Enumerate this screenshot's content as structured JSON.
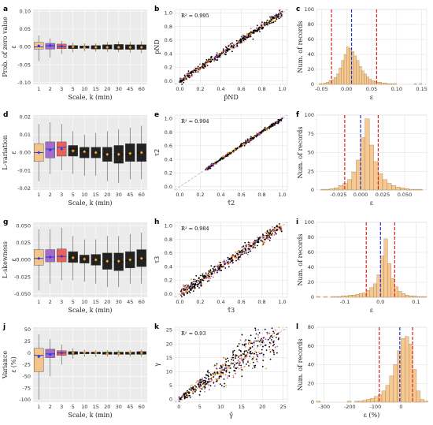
{
  "colors": {
    "box_fill": [
      "#f3c58b",
      "#a56bc8",
      "#e8615a",
      "#222222",
      "#222222",
      "#222222",
      "#222222",
      "#222222",
      "#222222",
      "#222222"
    ],
    "mean_marker": "#f5a623",
    "median_line": "#2b3bd6",
    "hist_fill": "#f6c892",
    "hist_edge": "#8a6a3a",
    "dash_red": "#e0201b",
    "dash_blue": "#2233cc",
    "scatter_main": "#000000",
    "scatter_alt": [
      "#f5a623",
      "#b04cc0",
      "#e8615a"
    ]
  },
  "chart_data": [
    {
      "id": "a",
      "label": "a",
      "type": "box",
      "ylabel": "Prob. of zero value",
      "yaxis_symbol": "ε",
      "xlabel": "Scale, k (min)",
      "categories": [
        "1",
        "2",
        "3",
        "5",
        "10",
        "15",
        "20",
        "30",
        "45",
        "60"
      ],
      "ylim": [
        -0.105,
        0.105
      ],
      "yticks": [
        -0.1,
        -0.05,
        0.0,
        0.05,
        0.1
      ],
      "ytick_labels": [
        "-0.10",
        "-0.05",
        "0.00",
        "0.05",
        "0.10"
      ],
      "boxes": [
        {
          "lw": -0.04,
          "q1": -0.006,
          "med": 0.0,
          "q3": 0.013,
          "uw": 0.032,
          "mean": 0.003
        },
        {
          "lw": -0.03,
          "q1": -0.006,
          "med": 0.003,
          "q3": 0.01,
          "uw": 0.024,
          "mean": 0.004
        },
        {
          "lw": -0.02,
          "q1": -0.005,
          "med": 0.001,
          "q3": 0.008,
          "uw": 0.017,
          "mean": 0.002
        },
        {
          "lw": -0.015,
          "q1": -0.005,
          "med": 0.0,
          "q3": 0.004,
          "uw": 0.012,
          "mean": 0.0
        },
        {
          "lw": -0.012,
          "q1": -0.004,
          "med": -0.001,
          "q3": 0.003,
          "uw": 0.01,
          "mean": -0.001
        },
        {
          "lw": -0.013,
          "q1": -0.006,
          "med": -0.001,
          "q3": 0.004,
          "uw": 0.01,
          "mean": -0.001
        },
        {
          "lw": -0.014,
          "q1": -0.006,
          "med": -0.001,
          "q3": 0.006,
          "uw": 0.014,
          "mean": -0.001
        },
        {
          "lw": -0.015,
          "q1": -0.007,
          "med": -0.001,
          "q3": 0.007,
          "uw": 0.015,
          "mean": -0.001
        },
        {
          "lw": -0.016,
          "q1": -0.007,
          "med": -0.002,
          "q3": 0.006,
          "uw": 0.014,
          "mean": -0.001
        },
        {
          "lw": -0.017,
          "q1": -0.007,
          "med": -0.001,
          "q3": 0.006,
          "uw": 0.015,
          "mean": -0.001
        }
      ]
    },
    {
      "id": "b",
      "label": "b",
      "type": "scatter",
      "annotation": "R² = 0.995",
      "xlabel": "p̂ND",
      "ylabel": "pND",
      "xlim": [
        -0.05,
        1.05
      ],
      "ylim": [
        -0.05,
        1.05
      ],
      "xticks": [
        0.0,
        0.2,
        0.4,
        0.6,
        0.8,
        1.0
      ],
      "yticks": [
        0.0,
        0.2,
        0.4,
        0.6,
        0.8,
        1.0
      ],
      "xtick_labels": [
        "0.0",
        "0.2",
        "0.4",
        "0.6",
        "0.8",
        "1.0"
      ],
      "ytick_labels": [
        "0.0",
        "0.2",
        "0.4",
        "0.6",
        "0.8",
        "1.0"
      ],
      "fit": {
        "slope": 1.0,
        "intercept": 0.0,
        "spread": 0.025,
        "n": 520,
        "x_range": [
          0.0,
          1.0
        ]
      }
    },
    {
      "id": "c",
      "label": "c",
      "type": "histogram",
      "xlabel": "ε",
      "ylabel": "Num. of records",
      "bin_start": -0.06,
      "bin_width": 0.005,
      "counts": [
        0,
        1,
        1,
        2,
        3,
        5,
        6,
        9,
        14,
        22,
        32,
        40,
        50,
        48,
        44,
        38,
        32,
        24,
        18,
        14,
        10,
        7,
        5,
        4,
        3,
        3,
        2,
        2,
        1,
        1,
        1,
        1,
        0,
        0,
        0,
        0,
        0,
        0,
        0,
        1,
        0,
        1,
        0,
        0
      ],
      "xlim": [
        -0.06,
        0.16
      ],
      "ylim": [
        0,
        100
      ],
      "xticks": [
        -0.05,
        0.0,
        0.05,
        0.1,
        0.15
      ],
      "xtick_labels": [
        "-0.05",
        "0.00",
        "0.05",
        "0.10",
        "0.15"
      ],
      "yticks": [
        0,
        20,
        40,
        60,
        80,
        100
      ],
      "ytick_labels": [
        "0",
        "20",
        "40",
        "60",
        "80",
        "100"
      ],
      "red_lines": [
        -0.03,
        0.06
      ],
      "blue_lines": [
        0.01
      ]
    },
    {
      "id": "d",
      "label": "d",
      "type": "box",
      "ylabel": "L-variation",
      "yaxis_symbol": "ε",
      "xlabel": "Scale, k (min)",
      "categories": [
        "1",
        "2",
        "3",
        "5",
        "10",
        "15",
        "20",
        "30",
        "45",
        "60"
      ],
      "ylim": [
        -0.021,
        0.021
      ],
      "yticks": [
        -0.02,
        -0.01,
        0.0,
        0.01,
        0.02
      ],
      "ytick_labels": [
        "-0.02",
        "-0.01",
        "0.00",
        "0.01",
        "0.02"
      ],
      "boxes": [
        {
          "lw": -0.016,
          "q1": -0.005,
          "med": 0.0,
          "q3": 0.005,
          "uw": 0.016,
          "mean": 0.0
        },
        {
          "lw": -0.012,
          "q1": -0.003,
          "med": 0.002,
          "q3": 0.006,
          "uw": 0.017,
          "mean": 0.0015
        },
        {
          "lw": -0.01,
          "q1": -0.002,
          "med": 0.003,
          "q3": 0.006,
          "uw": 0.016,
          "mean": 0.002
        },
        {
          "lw": -0.012,
          "q1": -0.002,
          "med": 0.002,
          "q3": 0.004,
          "uw": 0.012,
          "mean": 0.001
        },
        {
          "lw": -0.013,
          "q1": -0.003,
          "med": 0.001,
          "q3": 0.003,
          "uw": 0.01,
          "mean": 0.0005
        },
        {
          "lw": -0.013,
          "q1": -0.003,
          "med": 0.0,
          "q3": 0.003,
          "uw": 0.011,
          "mean": 0.0
        },
        {
          "lw": -0.016,
          "q1": -0.005,
          "med": -0.001,
          "q3": 0.003,
          "uw": 0.012,
          "mean": -0.001
        },
        {
          "lw": -0.017,
          "q1": -0.006,
          "med": -0.001,
          "q3": 0.004,
          "uw": 0.013,
          "mean": -0.001
        },
        {
          "lw": -0.015,
          "q1": -0.005,
          "med": -0.001,
          "q3": 0.005,
          "uw": 0.014,
          "mean": -0.0005
        },
        {
          "lw": -0.015,
          "q1": -0.005,
          "med": 0.0,
          "q3": 0.005,
          "uw": 0.015,
          "mean": 0.0
        }
      ]
    },
    {
      "id": "e",
      "label": "e",
      "type": "scatter",
      "annotation": "R² = 0.994",
      "xlabel": "τ̂2",
      "ylabel": "τ2",
      "xlim": [
        -0.05,
        1.05
      ],
      "ylim": [
        -0.05,
        1.05
      ],
      "xticks": [
        0.0,
        0.2,
        0.4,
        0.6,
        0.8,
        1.0
      ],
      "yticks": [
        0.0,
        0.2,
        0.4,
        0.6,
        0.8,
        1.0
      ],
      "xtick_labels": [
        "0.0",
        "0.2",
        "0.4",
        "0.6",
        "0.8",
        "1.0"
      ],
      "ytick_labels": [
        "0.0",
        "0.2",
        "0.4",
        "0.6",
        "0.8",
        "1.0"
      ],
      "fit": {
        "slope": 1.0,
        "intercept": 0.0,
        "spread": 0.012,
        "n": 380,
        "x_range": [
          0.25,
          1.0
        ]
      }
    },
    {
      "id": "f",
      "label": "f",
      "type": "histogram",
      "xlabel": "ε",
      "ylabel": "Num. of records",
      "bin_start": -0.05,
      "bin_width": 0.005,
      "counts": [
        0,
        1,
        1,
        2,
        3,
        6,
        9,
        14,
        24,
        40,
        70,
        95,
        60,
        38,
        22,
        14,
        9,
        6,
        4,
        3,
        2,
        1,
        1,
        1,
        0,
        0,
        0
      ],
      "xlim": [
        -0.05,
        0.075
      ],
      "ylim": [
        0,
        100
      ],
      "xticks": [
        -0.025,
        0.0,
        0.025,
        0.05
      ],
      "xtick_labels": [
        "-0.025",
        "0.000",
        "0.025",
        "0.050"
      ],
      "yticks": [
        0,
        25,
        50,
        75,
        100
      ],
      "ytick_labels": [
        "0",
        "25",
        "50",
        "75",
        "100"
      ],
      "red_lines": [
        -0.018,
        0.02
      ],
      "blue_lines": [
        0.0
      ]
    },
    {
      "id": "g",
      "label": "g",
      "type": "box",
      "ylabel": "L-skewness",
      "yaxis_symbol": "ε",
      "xlabel": "Scale, k (min)",
      "categories": [
        "1",
        "2",
        "3",
        "5",
        "10",
        "15",
        "20",
        "30",
        "45",
        "60"
      ],
      "ylim": [
        -0.055,
        0.055
      ],
      "yticks": [
        -0.05,
        -0.025,
        0.0,
        0.025,
        0.05
      ],
      "ytick_labels": [
        "-0.050",
        "-0.025",
        "0.000",
        "0.025",
        "0.050"
      ],
      "boxes": [
        {
          "lw": -0.045,
          "q1": -0.008,
          "med": 0.002,
          "q3": 0.015,
          "uw": 0.045,
          "mean": 0.002
        },
        {
          "lw": -0.035,
          "q1": -0.003,
          "med": 0.004,
          "q3": 0.015,
          "uw": 0.045,
          "mean": 0.004
        },
        {
          "lw": -0.03,
          "q1": -0.003,
          "med": 0.005,
          "q3": 0.016,
          "uw": 0.047,
          "mean": 0.005
        },
        {
          "lw": -0.03,
          "q1": -0.004,
          "med": 0.003,
          "q3": 0.012,
          "uw": 0.035,
          "mean": 0.003
        },
        {
          "lw": -0.032,
          "q1": -0.005,
          "med": 0.001,
          "q3": 0.007,
          "uw": 0.03,
          "mean": 0.001
        },
        {
          "lw": -0.035,
          "q1": -0.008,
          "med": 0.0,
          "q3": 0.008,
          "uw": 0.03,
          "mean": 0.0
        },
        {
          "lw": -0.04,
          "q1": -0.014,
          "med": -0.002,
          "q3": 0.01,
          "uw": 0.035,
          "mean": -0.002
        },
        {
          "lw": -0.04,
          "q1": -0.016,
          "med": -0.003,
          "q3": 0.01,
          "uw": 0.035,
          "mean": -0.002
        },
        {
          "lw": -0.035,
          "q1": -0.012,
          "med": -0.001,
          "q3": 0.012,
          "uw": 0.038,
          "mean": 0.0
        },
        {
          "lw": -0.035,
          "q1": -0.01,
          "med": 0.001,
          "q3": 0.015,
          "uw": 0.04,
          "mean": 0.002
        }
      ]
    },
    {
      "id": "h",
      "label": "h",
      "type": "scatter",
      "annotation": "R² = 0.984",
      "xlabel": "τ̂3",
      "ylabel": "τ3",
      "xlim": [
        -0.05,
        1.05
      ],
      "ylim": [
        -0.05,
        1.05
      ],
      "xticks": [
        0.0,
        0.2,
        0.4,
        0.6,
        0.8,
        1.0
      ],
      "yticks": [
        0.0,
        0.2,
        0.4,
        0.6,
        0.8,
        1.0
      ],
      "xtick_labels": [
        "0.0",
        "0.2",
        "0.4",
        "0.6",
        "0.8",
        "1.0"
      ],
      "ytick_labels": [
        "0.0",
        "0.2",
        "0.4",
        "0.6",
        "0.8",
        "1.0"
      ],
      "fit": {
        "slope": 1.0,
        "intercept": 0.0,
        "spread": 0.04,
        "n": 520,
        "x_range": [
          0.0,
          1.0
        ]
      }
    },
    {
      "id": "i",
      "label": "i",
      "type": "histogram",
      "xlabel": "ε",
      "ylabel": "Num. of records",
      "bin_start": -0.18,
      "bin_width": 0.01,
      "counts": [
        1,
        0,
        1,
        0,
        1,
        1,
        1,
        2,
        2,
        3,
        3,
        4,
        5,
        6,
        9,
        13,
        18,
        30,
        55,
        78,
        45,
        25,
        14,
        8,
        5,
        3,
        2,
        2,
        1,
        1,
        1,
        0
      ],
      "xlim": [
        -0.18,
        0.13
      ],
      "ylim": [
        0,
        100
      ],
      "xticks": [
        -0.1,
        0.0,
        0.1
      ],
      "xtick_labels": [
        "-0.1",
        "0.0",
        "0.1"
      ],
      "yticks": [
        0,
        20,
        40,
        60,
        80,
        100
      ],
      "ytick_labels": [
        "0",
        "20",
        "40",
        "60",
        "80",
        "100"
      ],
      "red_lines": [
        -0.04,
        0.04
      ],
      "blue_lines": [
        0.0
      ]
    },
    {
      "id": "j",
      "label": "j",
      "type": "box",
      "ylabel": "Variance",
      "yaxis_symbol": "ε (%)",
      "xlabel": "Scale, k (min)",
      "categories": [
        "1",
        "2",
        "3",
        "5",
        "10",
        "15",
        "20",
        "30",
        "45",
        "60"
      ],
      "ylim": [
        -105,
        55
      ],
      "yticks": [
        -100,
        -75,
        -50,
        -25,
        0,
        25,
        50
      ],
      "ytick_labels": [
        "-100",
        "-75",
        "-50",
        "-25",
        "0",
        "25",
        "50"
      ],
      "boxes": [
        {
          "lw": -100,
          "q1": -40,
          "med": -5,
          "q3": 10,
          "uw": 40,
          "mean": -8
        },
        {
          "lw": -50,
          "q1": -10,
          "med": -2,
          "q3": 8,
          "uw": 30,
          "mean": -3
        },
        {
          "lw": -25,
          "q1": -5,
          "med": 0,
          "q3": 5,
          "uw": 18,
          "mean": 0
        },
        {
          "lw": -12,
          "q1": -3,
          "med": 0,
          "q3": 3,
          "uw": 10,
          "mean": 0
        },
        {
          "lw": -8,
          "q1": -2,
          "med": 0,
          "q3": 2,
          "uw": 7,
          "mean": 0
        },
        {
          "lw": -8,
          "q1": -2,
          "med": 0,
          "q3": 2,
          "uw": 6,
          "mean": 0
        },
        {
          "lw": -8,
          "q1": -3,
          "med": -1,
          "q3": 2,
          "uw": 6,
          "mean": -1
        },
        {
          "lw": -8,
          "q1": -3,
          "med": -1,
          "q3": 2,
          "uw": 6,
          "mean": -1
        },
        {
          "lw": -8,
          "q1": -3,
          "med": 0,
          "q3": 2,
          "uw": 6,
          "mean": 0
        },
        {
          "lw": -8,
          "q1": -3,
          "med": 0,
          "q3": 3,
          "uw": 7,
          "mean": 0
        }
      ]
    },
    {
      "id": "k",
      "label": "k",
      "type": "scatter",
      "annotation": "R² = 0.93",
      "xlabel": "γ̂",
      "ylabel": "γ",
      "xlim": [
        -1,
        26
      ],
      "ylim": [
        -1,
        26
      ],
      "xticks": [
        0,
        5,
        10,
        15,
        20,
        25
      ],
      "yticks": [
        0,
        5,
        10,
        15,
        20,
        25
      ],
      "xtick_labels": [
        "0",
        "5",
        "10",
        "15",
        "20",
        "25"
      ],
      "ytick_labels": [
        "0",
        "5",
        "10",
        "15",
        "20",
        "25"
      ],
      "fit": {
        "slope": 1.0,
        "intercept": 0.0,
        "spread": 1.6,
        "n": 500,
        "x_range": [
          0.0,
          24.0
        ]
      }
    },
    {
      "id": "l",
      "label": "l",
      "type": "histogram",
      "xlabel": "ε (%)",
      "ylabel": "Num. of records",
      "bin_start": -330,
      "bin_width": 15,
      "counts": [
        1,
        0,
        0,
        0,
        0,
        0,
        0,
        0,
        1,
        0,
        1,
        1,
        2,
        3,
        4,
        6,
        8,
        12,
        18,
        28,
        40,
        55,
        68,
        70,
        62,
        35,
        12,
        3,
        1
      ],
      "xlim": [
        -330,
        100
      ],
      "ylim": [
        0,
        80
      ],
      "xticks": [
        -300,
        -200,
        -100,
        0
      ],
      "xtick_labels": [
        "-300",
        "-200",
        "-100",
        "0"
      ],
      "yticks": [
        0,
        20,
        40,
        60,
        80
      ],
      "ytick_labels": [
        "0",
        "20",
        "40",
        "60",
        "80"
      ],
      "red_lines": [
        -85,
        45
      ],
      "blue_lines": [
        -5
      ]
    }
  ]
}
